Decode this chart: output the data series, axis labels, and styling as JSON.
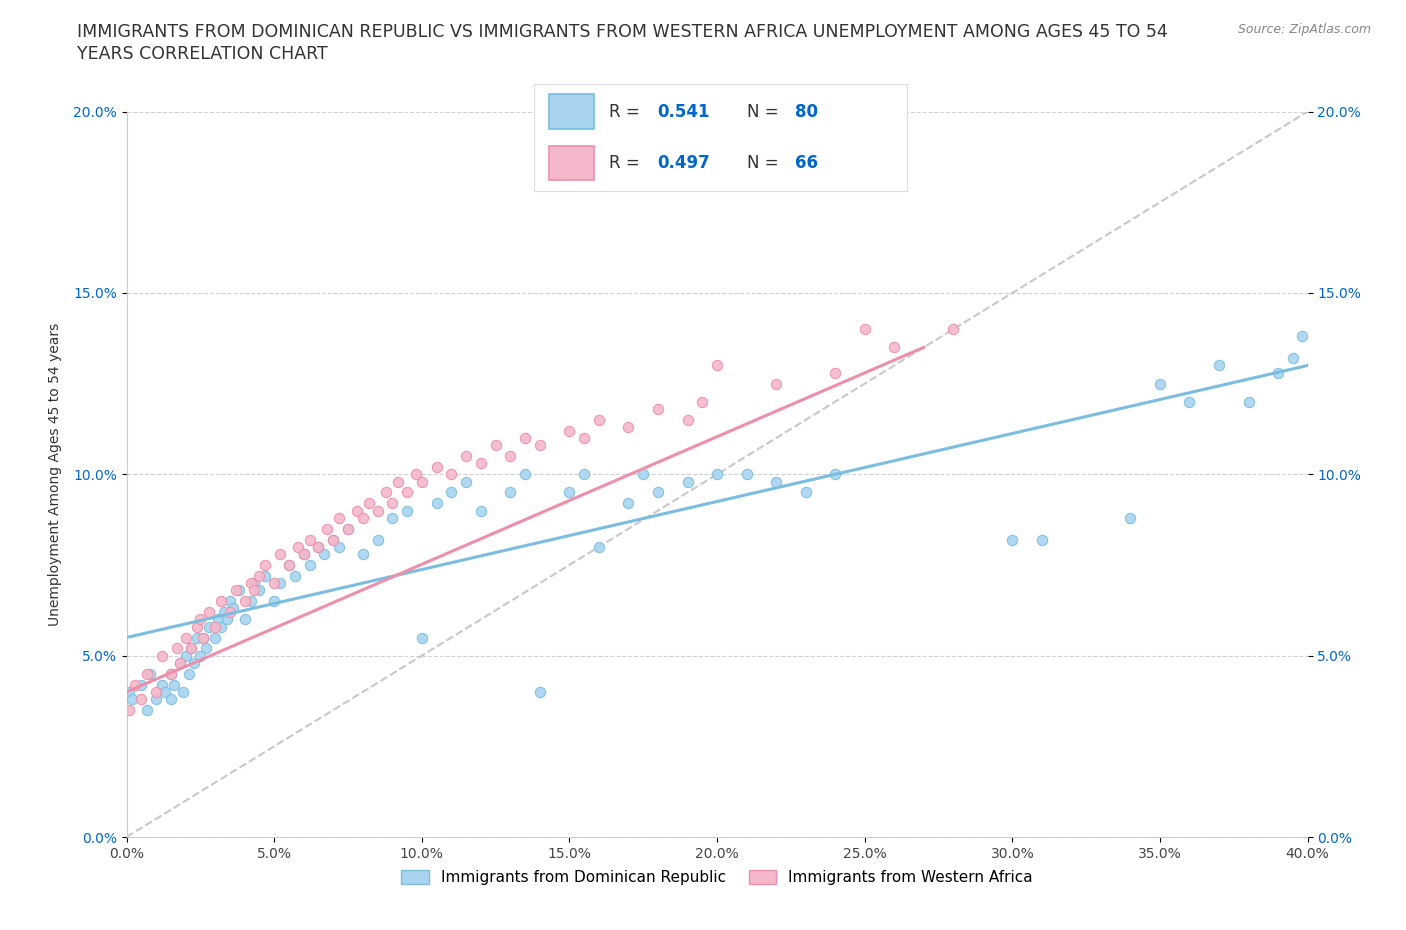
{
  "title_line1": "IMMIGRANTS FROM DOMINICAN REPUBLIC VS IMMIGRANTS FROM WESTERN AFRICA UNEMPLOYMENT AMONG AGES 45 TO 54",
  "title_line2": "YEARS CORRELATION CHART",
  "source_text": "Source: ZipAtlas.com",
  "ylabel": "Unemployment Among Ages 45 to 54 years",
  "xlim": [
    0.0,
    0.4
  ],
  "ylim": [
    0.0,
    0.2
  ],
  "xticks": [
    0.0,
    0.05,
    0.1,
    0.15,
    0.2,
    0.25,
    0.3,
    0.35,
    0.4
  ],
  "yticks": [
    0.0,
    0.05,
    0.1,
    0.15,
    0.2
  ],
  "xtick_labels": [
    "0.0%",
    "5.0%",
    "10.0%",
    "15.0%",
    "20.0%",
    "25.0%",
    "30.0%",
    "35.0%",
    "40.0%"
  ],
  "ytick_labels": [
    "0.0%",
    "5.0%",
    "10.0%",
    "15.0%",
    "20.0%"
  ],
  "color_blue": "#A8D4F0",
  "color_pink": "#F5B8CB",
  "edge_blue": "#7BBDE0",
  "edge_pink": "#EE8FAA",
  "line_blue": "#7BBDE0",
  "line_pink": "#EE8FAA",
  "line_dashed_color": "#BBBBBB",
  "R_blue": "0.541",
  "N_blue": "80",
  "R_pink": "0.497",
  "N_pink": "66",
  "legend_label_blue": "Immigrants from Dominican Republic",
  "legend_label_pink": "Immigrants from Western Africa",
  "blue_x": [
    0.001,
    0.002,
    0.005,
    0.007,
    0.008,
    0.01,
    0.012,
    0.013,
    0.015,
    0.015,
    0.016,
    0.018,
    0.019,
    0.02,
    0.021,
    0.022,
    0.023,
    0.024,
    0.025,
    0.026,
    0.027,
    0.028,
    0.03,
    0.031,
    0.032,
    0.033,
    0.034,
    0.035,
    0.036,
    0.038,
    0.04,
    0.042,
    0.043,
    0.045,
    0.047,
    0.05,
    0.052,
    0.055,
    0.057,
    0.06,
    0.062,
    0.065,
    0.067,
    0.07,
    0.072,
    0.075,
    0.08,
    0.085,
    0.09,
    0.095,
    0.1,
    0.105,
    0.11,
    0.115,
    0.12,
    0.13,
    0.135,
    0.14,
    0.15,
    0.155,
    0.16,
    0.17,
    0.175,
    0.18,
    0.19,
    0.2,
    0.21,
    0.22,
    0.23,
    0.24,
    0.3,
    0.31,
    0.34,
    0.35,
    0.36,
    0.37,
    0.38,
    0.39,
    0.395,
    0.398
  ],
  "blue_y": [
    0.04,
    0.038,
    0.042,
    0.035,
    0.045,
    0.038,
    0.042,
    0.04,
    0.045,
    0.038,
    0.042,
    0.048,
    0.04,
    0.05,
    0.045,
    0.052,
    0.048,
    0.055,
    0.05,
    0.055,
    0.052,
    0.058,
    0.055,
    0.06,
    0.058,
    0.062,
    0.06,
    0.065,
    0.063,
    0.068,
    0.06,
    0.065,
    0.07,
    0.068,
    0.072,
    0.065,
    0.07,
    0.075,
    0.072,
    0.078,
    0.075,
    0.08,
    0.078,
    0.082,
    0.08,
    0.085,
    0.078,
    0.082,
    0.088,
    0.09,
    0.055,
    0.092,
    0.095,
    0.098,
    0.09,
    0.095,
    0.1,
    0.04,
    0.095,
    0.1,
    0.08,
    0.092,
    0.1,
    0.095,
    0.098,
    0.1,
    0.1,
    0.098,
    0.095,
    0.1,
    0.082,
    0.082,
    0.088,
    0.125,
    0.12,
    0.13,
    0.12,
    0.128,
    0.132,
    0.138
  ],
  "pink_x": [
    0.001,
    0.003,
    0.005,
    0.007,
    0.01,
    0.012,
    0.015,
    0.017,
    0.018,
    0.02,
    0.022,
    0.024,
    0.025,
    0.026,
    0.028,
    0.03,
    0.032,
    0.035,
    0.037,
    0.04,
    0.042,
    0.043,
    0.045,
    0.047,
    0.05,
    0.052,
    0.055,
    0.058,
    0.06,
    0.062,
    0.065,
    0.068,
    0.07,
    0.072,
    0.075,
    0.078,
    0.08,
    0.082,
    0.085,
    0.088,
    0.09,
    0.092,
    0.095,
    0.098,
    0.1,
    0.105,
    0.11,
    0.115,
    0.12,
    0.125,
    0.13,
    0.135,
    0.14,
    0.15,
    0.155,
    0.16,
    0.17,
    0.18,
    0.19,
    0.195,
    0.2,
    0.22,
    0.24,
    0.25,
    0.26,
    0.28
  ],
  "pink_y": [
    0.035,
    0.042,
    0.038,
    0.045,
    0.04,
    0.05,
    0.045,
    0.052,
    0.048,
    0.055,
    0.052,
    0.058,
    0.06,
    0.055,
    0.062,
    0.058,
    0.065,
    0.062,
    0.068,
    0.065,
    0.07,
    0.068,
    0.072,
    0.075,
    0.07,
    0.078,
    0.075,
    0.08,
    0.078,
    0.082,
    0.08,
    0.085,
    0.082,
    0.088,
    0.085,
    0.09,
    0.088,
    0.092,
    0.09,
    0.095,
    0.092,
    0.098,
    0.095,
    0.1,
    0.098,
    0.102,
    0.1,
    0.105,
    0.103,
    0.108,
    0.105,
    0.11,
    0.108,
    0.112,
    0.11,
    0.115,
    0.113,
    0.118,
    0.115,
    0.12,
    0.13,
    0.125,
    0.128,
    0.14,
    0.135,
    0.14
  ],
  "title_fontsize": 12.5,
  "axis_label_fontsize": 10,
  "tick_fontsize": 10,
  "legend_fontsize": 11,
  "source_fontsize": 9,
  "rn_fontsize": 12
}
